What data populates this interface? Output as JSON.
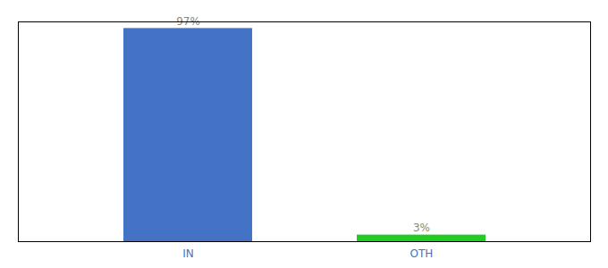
{
  "chart_data": {
    "type": "bar",
    "categories": [
      "IN",
      "OTH"
    ],
    "values": [
      97,
      3
    ],
    "value_labels": [
      "97%",
      "3%"
    ],
    "colors": [
      "#4472c4",
      "#22cc22"
    ],
    "ylim": [
      0,
      100
    ],
    "data_labels": true,
    "tick_labels": "x",
    "grid": false
  }
}
